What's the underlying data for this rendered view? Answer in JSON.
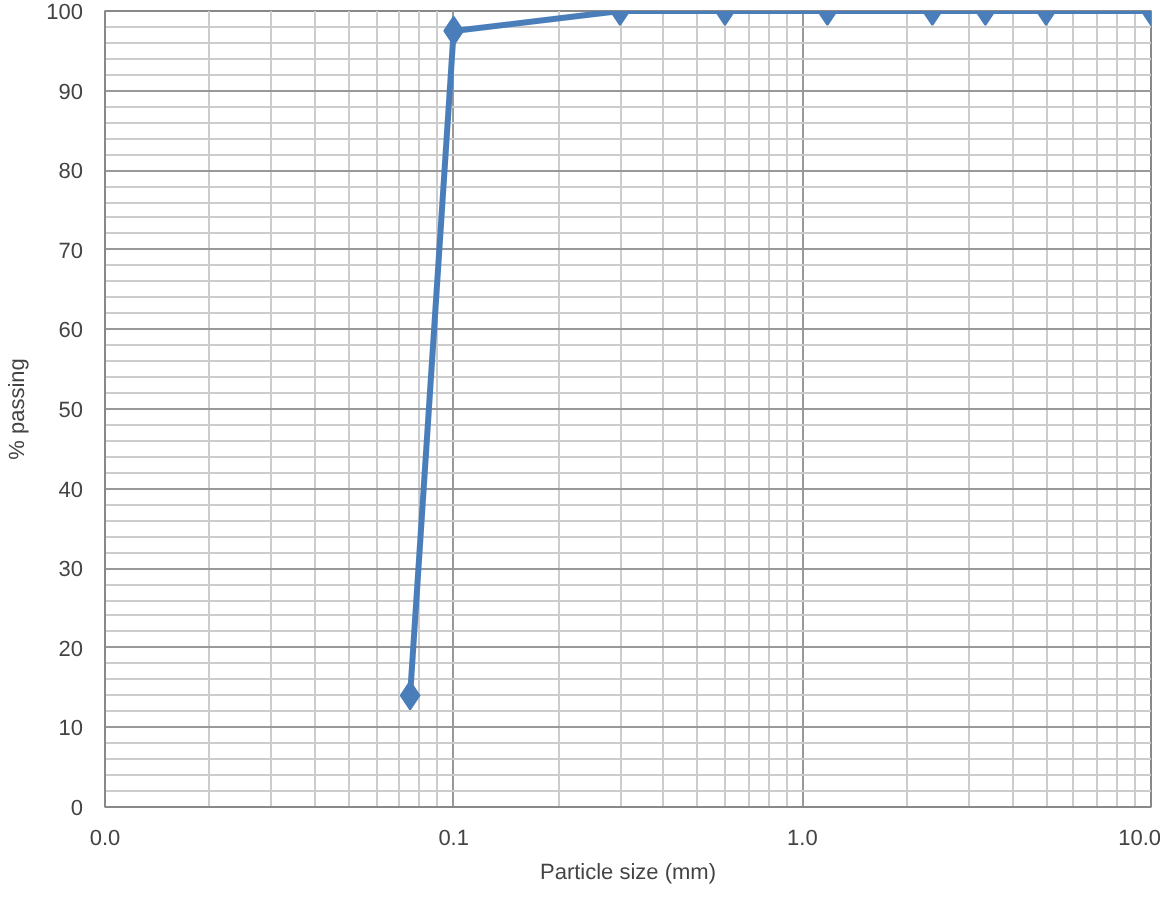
{
  "chart_data": {
    "type": "line",
    "xlabel": "Particle size (mm)",
    "ylabel": "% passing",
    "log": "x",
    "xlim": [
      0.01,
      10
    ],
    "xticks": [
      {
        "value": 0.01,
        "label": "0.0"
      },
      {
        "value": 0.1,
        "label": "0.1"
      },
      {
        "value": 1,
        "label": "1.0"
      },
      {
        "value": 10,
        "label": "10.0"
      }
    ],
    "ylim": [
      0,
      100
    ],
    "yticks": [
      0,
      10,
      20,
      30,
      40,
      50,
      60,
      70,
      80,
      90,
      100
    ],
    "grid": true,
    "marker": "diamond",
    "line_style": "solid",
    "series": [
      {
        "color": "#4a7ebb",
        "x": [
          0.075,
          0.1,
          0.3,
          0.6,
          1.18,
          2.36,
          3.35,
          5,
          10
        ],
        "values": [
          14,
          97.5,
          100,
          100,
          100,
          100,
          100,
          100,
          100
        ]
      }
    ]
  }
}
